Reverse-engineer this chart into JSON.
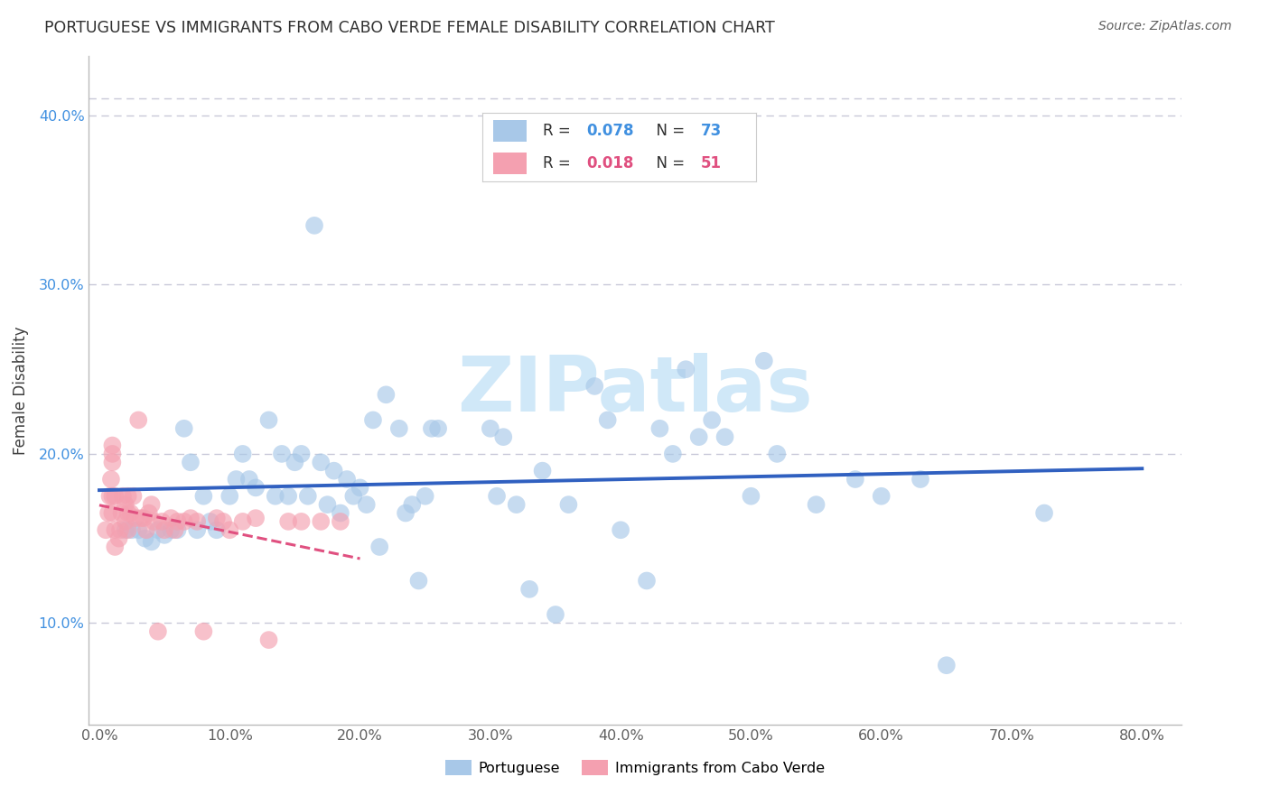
{
  "title": "PORTUGUESE VS IMMIGRANTS FROM CABO VERDE FEMALE DISABILITY CORRELATION CHART",
  "source": "Source: ZipAtlas.com",
  "ylabel": "Female Disability",
  "blue_R": 0.078,
  "blue_N": 73,
  "pink_R": 0.018,
  "pink_N": 51,
  "blue_color": "#a8c8e8",
  "pink_color": "#f4a0b0",
  "blue_line_color": "#3060c0",
  "pink_line_color": "#e05080",
  "blue_text_color": "#4090e0",
  "pink_text_color": "#e05080",
  "watermark": "ZIPatlas",
  "watermark_color": "#d0e8f8",
  "legend_label_blue": "Portuguese",
  "legend_label_pink": "Immigrants from Cabo Verde",
  "grid_color": "#c8c8d8",
  "background_color": "#ffffff",
  "title_color": "#303030",
  "source_color": "#606060",
  "ylabel_color": "#404040",
  "tick_label_color_x": "#606060",
  "tick_label_color_y": "#4090e0",
  "blue_x": [
    0.02,
    0.025,
    0.03,
    0.035,
    0.04,
    0.045,
    0.05,
    0.055,
    0.06,
    0.065,
    0.07,
    0.075,
    0.08,
    0.085,
    0.09,
    0.1,
    0.105,
    0.11,
    0.115,
    0.12,
    0.13,
    0.135,
    0.14,
    0.145,
    0.15,
    0.155,
    0.16,
    0.165,
    0.17,
    0.175,
    0.18,
    0.185,
    0.19,
    0.195,
    0.2,
    0.205,
    0.21,
    0.215,
    0.22,
    0.23,
    0.235,
    0.24,
    0.245,
    0.25,
    0.255,
    0.26,
    0.3,
    0.305,
    0.31,
    0.32,
    0.33,
    0.34,
    0.35,
    0.36,
    0.38,
    0.39,
    0.4,
    0.42,
    0.43,
    0.44,
    0.45,
    0.46,
    0.47,
    0.48,
    0.5,
    0.51,
    0.52,
    0.55,
    0.58,
    0.6,
    0.63,
    0.65,
    0.725
  ],
  "blue_y": [
    0.155,
    0.155,
    0.155,
    0.15,
    0.148,
    0.155,
    0.152,
    0.155,
    0.155,
    0.215,
    0.195,
    0.155,
    0.175,
    0.16,
    0.155,
    0.175,
    0.185,
    0.2,
    0.185,
    0.18,
    0.22,
    0.175,
    0.2,
    0.175,
    0.195,
    0.2,
    0.175,
    0.335,
    0.195,
    0.17,
    0.19,
    0.165,
    0.185,
    0.175,
    0.18,
    0.17,
    0.22,
    0.145,
    0.235,
    0.215,
    0.165,
    0.17,
    0.125,
    0.175,
    0.215,
    0.215,
    0.215,
    0.175,
    0.21,
    0.17,
    0.12,
    0.19,
    0.105,
    0.17,
    0.24,
    0.22,
    0.155,
    0.125,
    0.215,
    0.2,
    0.25,
    0.21,
    0.22,
    0.21,
    0.175,
    0.255,
    0.2,
    0.17,
    0.185,
    0.175,
    0.185,
    0.075,
    0.165
  ],
  "pink_x": [
    0.005,
    0.007,
    0.008,
    0.009,
    0.01,
    0.01,
    0.01,
    0.01,
    0.01,
    0.012,
    0.012,
    0.012,
    0.015,
    0.016,
    0.017,
    0.018,
    0.02,
    0.02,
    0.022,
    0.022,
    0.022,
    0.024,
    0.026,
    0.028,
    0.03,
    0.032,
    0.034,
    0.036,
    0.038,
    0.04,
    0.042,
    0.045,
    0.048,
    0.05,
    0.055,
    0.058,
    0.06,
    0.065,
    0.07,
    0.075,
    0.08,
    0.09,
    0.095,
    0.1,
    0.11,
    0.12,
    0.13,
    0.145,
    0.155,
    0.17,
    0.185
  ],
  "pink_y": [
    0.155,
    0.165,
    0.175,
    0.185,
    0.195,
    0.2,
    0.205,
    0.175,
    0.165,
    0.175,
    0.155,
    0.145,
    0.15,
    0.155,
    0.165,
    0.175,
    0.16,
    0.17,
    0.175,
    0.165,
    0.155,
    0.165,
    0.175,
    0.162,
    0.22,
    0.162,
    0.162,
    0.155,
    0.165,
    0.17,
    0.16,
    0.095,
    0.16,
    0.155,
    0.162,
    0.155,
    0.16,
    0.16,
    0.162,
    0.16,
    0.095,
    0.162,
    0.16,
    0.155,
    0.16,
    0.162,
    0.09,
    0.16,
    0.16,
    0.16,
    0.16
  ]
}
